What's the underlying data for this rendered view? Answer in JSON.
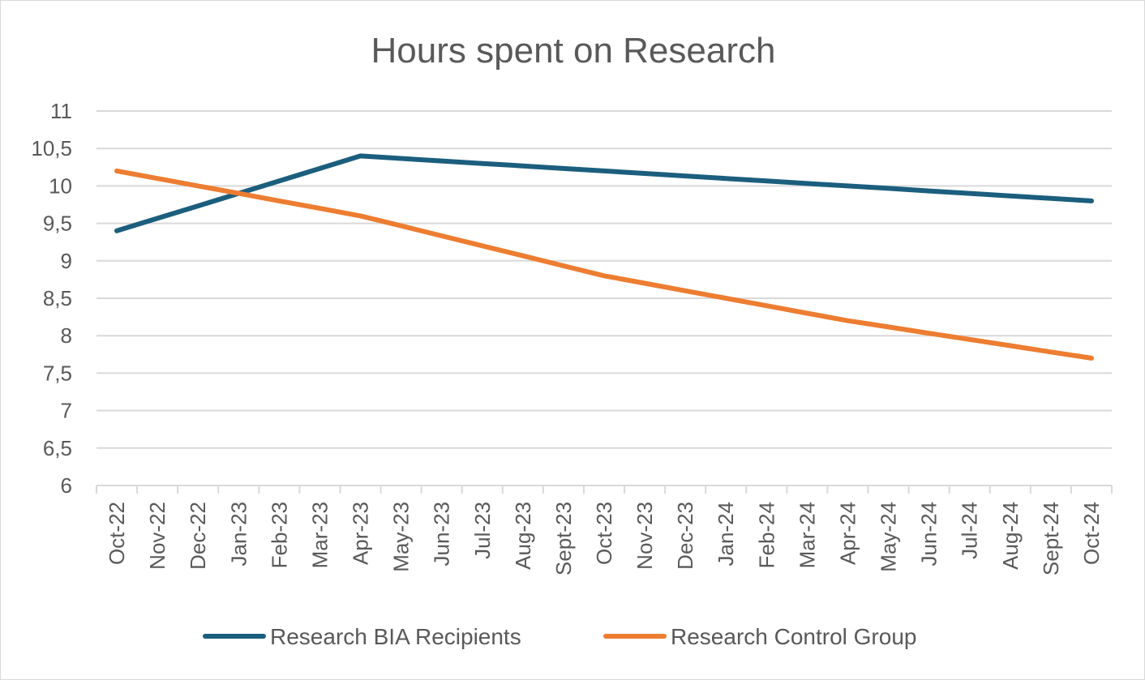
{
  "chart_data": {
    "type": "line",
    "title": "Hours spent on Research",
    "xlabel": "",
    "ylabel": "",
    "ylim": [
      6,
      11
    ],
    "y_ticks": [
      "6",
      "6,5",
      "7",
      "7,5",
      "8",
      "8,5",
      "9",
      "9,5",
      "10",
      "10,5",
      "11"
    ],
    "grid": true,
    "legend_position": "bottom",
    "categories": [
      "Oct-22",
      "Nov-22",
      "Dec-22",
      "Jan-23",
      "Feb-23",
      "Mar-23",
      "Apr-23",
      "May-23",
      "Jun-23",
      "Jul-23",
      "Aug-23",
      "Sept-23",
      "Oct-23",
      "Nov-23",
      "Dec-23",
      "Jan-24",
      "Feb-24",
      "Mar-24",
      "Apr-24",
      "May-24",
      "Jun-24",
      "Jul-24",
      "Aug-24",
      "Sept-24",
      "Oct-24"
    ],
    "series": [
      {
        "name": "Research BIA Recipients",
        "color": "#1b5e7e",
        "values": [
          9.4,
          9.567,
          9.733,
          9.9,
          10.067,
          10.233,
          10.4,
          10.367,
          10.333,
          10.3,
          10.267,
          10.233,
          10.2,
          10.167,
          10.133,
          10.1,
          10.067,
          10.033,
          10.0,
          9.967,
          9.933,
          9.9,
          9.867,
          9.833,
          9.8
        ]
      },
      {
        "name": "Research Control Group",
        "color": "#ed7d31",
        "values": [
          10.2,
          10.1,
          10.0,
          9.9,
          9.8,
          9.7,
          9.6,
          9.467,
          9.333,
          9.2,
          9.067,
          8.933,
          8.8,
          8.7,
          8.6,
          8.5,
          8.4,
          8.3,
          8.2,
          8.117,
          8.033,
          7.95,
          7.867,
          7.783,
          7.7
        ]
      }
    ]
  }
}
